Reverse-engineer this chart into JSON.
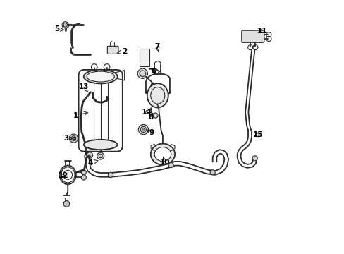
{
  "bg_color": "#ffffff",
  "line_color": "#2a2a2a",
  "text_color": "#000000",
  "figsize": [
    4.89,
    3.6
  ],
  "dpi": 100,
  "label_positions": {
    "1": {
      "lpos": [
        0.115,
        0.545
      ],
      "apos": [
        0.175,
        0.56
      ]
    },
    "2": {
      "lpos": [
        0.31,
        0.8
      ],
      "apos": [
        0.278,
        0.793
      ]
    },
    "3": {
      "lpos": [
        0.078,
        0.455
      ],
      "apos": [
        0.108,
        0.455
      ]
    },
    "4": {
      "lpos": [
        0.175,
        0.358
      ],
      "apos": [
        0.215,
        0.37
      ]
    },
    "5": {
      "lpos": [
        0.042,
        0.888
      ],
      "apos": [
        0.072,
        0.885
      ]
    },
    "6": {
      "lpos": [
        0.425,
        0.72
      ],
      "apos": [
        0.44,
        0.7
      ]
    },
    "7": {
      "lpos": [
        0.44,
        0.82
      ],
      "apos": [
        0.445,
        0.798
      ]
    },
    "8": {
      "lpos": [
        0.415,
        0.54
      ],
      "apos": [
        0.415,
        0.558
      ]
    },
    "9": {
      "lpos": [
        0.418,
        0.478
      ],
      "apos": [
        0.395,
        0.49
      ]
    },
    "10": {
      "lpos": [
        0.47,
        0.36
      ],
      "apos": [
        0.463,
        0.382
      ]
    },
    "11": {
      "lpos": [
        0.858,
        0.882
      ],
      "apos": [
        0.833,
        0.872
      ]
    },
    "12": {
      "lpos": [
        0.068,
        0.308
      ],
      "apos": [
        0.085,
        0.31
      ]
    },
    "13": {
      "lpos": [
        0.148,
        0.66
      ],
      "apos": [
        0.165,
        0.638
      ]
    },
    "14": {
      "lpos": [
        0.398,
        0.558
      ],
      "apos": [
        0.38,
        0.548
      ]
    },
    "15": {
      "lpos": [
        0.84,
        0.468
      ],
      "apos": [
        0.815,
        0.462
      ]
    }
  }
}
